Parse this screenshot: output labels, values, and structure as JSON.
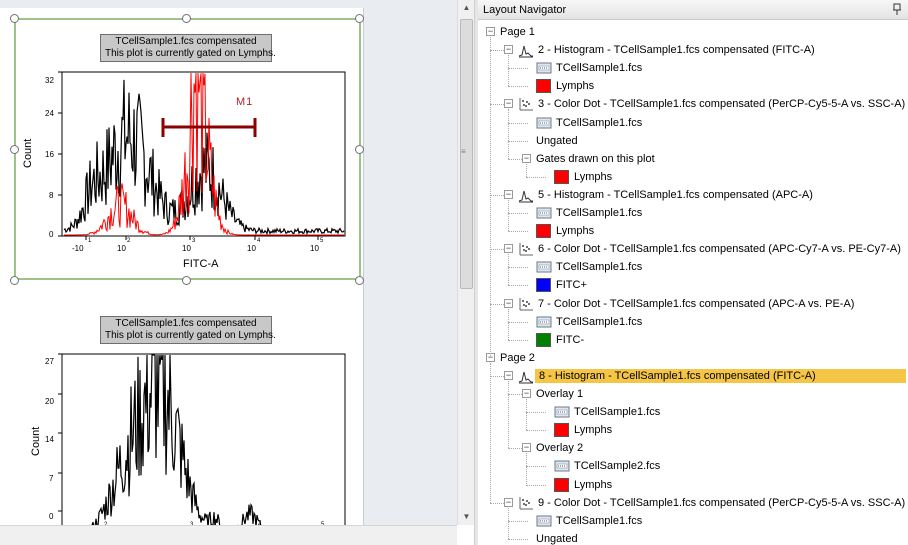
{
  "canvas": {
    "plot1": {
      "header_line1": "TCellSample1.fcs compensated",
      "header_line2": "This plot is currently gated on Lymphs.",
      "xlabel": "FITC-A",
      "ylabel": "Count",
      "yticks": [
        "0",
        "8",
        "16",
        "24",
        "32"
      ],
      "xticks": [
        "-10",
        "1",
        "10",
        "2",
        "10",
        "3",
        "10",
        "4",
        "10",
        "5"
      ],
      "gate_label": "M1"
    },
    "plot2": {
      "header_line1": "TCellSample1.fcs compensated",
      "header_line2": "This plot is currently gated on Lymphs.",
      "ylabel": "Count",
      "yticks": [
        "0",
        "7",
        "14",
        "20",
        "27"
      ],
      "xticks": [
        "2",
        "3",
        "4",
        "5"
      ]
    }
  },
  "navigator": {
    "title": "Layout Navigator",
    "pin_icon": "pin-icon",
    "items": [
      {
        "level": 0,
        "toggle": "minus",
        "label": "Page 1"
      },
      {
        "level": 1,
        "toggle": "minus",
        "icon": "histogram-icon",
        "label": "2 - Histogram - TCellSample1.fcs compensated (FITC-A)"
      },
      {
        "level": 2,
        "icon": "data-file-icon",
        "label": "TCellSample1.fcs"
      },
      {
        "level": 2,
        "swatch": "#ff0000",
        "label": "Lymphs"
      },
      {
        "level": 1,
        "toggle": "minus",
        "icon": "dot-plot-icon",
        "label": "3 - Color Dot - TCellSample1.fcs compensated (PerCP-Cy5-5-A vs. SSC-A)"
      },
      {
        "level": 2,
        "icon": "data-file-icon",
        "label": "TCellSample1.fcs"
      },
      {
        "level": 2,
        "label": "Ungated"
      },
      {
        "level": 2,
        "toggle": "minus",
        "label": "Gates drawn on this plot"
      },
      {
        "level": 3,
        "swatch": "#ff0000",
        "label": "Lymphs"
      },
      {
        "level": 1,
        "toggle": "minus",
        "icon": "histogram-icon",
        "label": "5 - Histogram - TCellSample1.fcs compensated (APC-A)"
      },
      {
        "level": 2,
        "icon": "data-file-icon",
        "label": "TCellSample1.fcs"
      },
      {
        "level": 2,
        "swatch": "#ff0000",
        "label": "Lymphs"
      },
      {
        "level": 1,
        "toggle": "minus",
        "icon": "dot-plot-icon",
        "label": "6 - Color Dot - TCellSample1.fcs compensated (APC-Cy7-A vs. PE-Cy7-A)"
      },
      {
        "level": 2,
        "icon": "data-file-icon",
        "label": "TCellSample1.fcs"
      },
      {
        "level": 2,
        "swatch": "#0000ff",
        "label": "FITC+"
      },
      {
        "level": 1,
        "toggle": "minus",
        "icon": "dot-plot-icon",
        "label": "7 - Color Dot - TCellSample1.fcs compensated (APC-A vs. PE-A)"
      },
      {
        "level": 2,
        "icon": "data-file-icon",
        "label": "TCellSample1.fcs"
      },
      {
        "level": 2,
        "swatch": "#008000",
        "label": "FITC-"
      },
      {
        "level": 0,
        "toggle": "minus",
        "label": "Page 2"
      },
      {
        "level": 1,
        "toggle": "minus",
        "icon": "histogram-icon",
        "label": "8 - Histogram - TCellSample1.fcs compensated (FITC-A)",
        "selected": true
      },
      {
        "level": 2,
        "toggle": "minus",
        "label": "Overlay 1"
      },
      {
        "level": 3,
        "icon": "data-file-icon",
        "label": "TCellSample1.fcs"
      },
      {
        "level": 3,
        "swatch": "#ff0000",
        "label": "Lymphs"
      },
      {
        "level": 2,
        "toggle": "minus",
        "label": "Overlay 2"
      },
      {
        "level": 3,
        "icon": "data-file-icon",
        "label": "TCellSample2.fcs"
      },
      {
        "level": 3,
        "swatch": "#ff0000",
        "label": "Lymphs"
      },
      {
        "level": 1,
        "toggle": "minus",
        "icon": "dot-plot-icon",
        "label": "9 - Color Dot - TCellSample1.fcs compensated (PerCP-Cy5-5-A vs. SSC-A)"
      },
      {
        "level": 2,
        "icon": "data-file-icon",
        "label": "TCellSample1.fcs"
      },
      {
        "level": 2,
        "label": "Ungated"
      }
    ]
  },
  "colors": {
    "selection_frame": "#9cc38a",
    "highlight": "#f5c646",
    "gate_marker": "#8b0000",
    "overlay_red": "#ff0000",
    "overlay_black": "#000000"
  }
}
